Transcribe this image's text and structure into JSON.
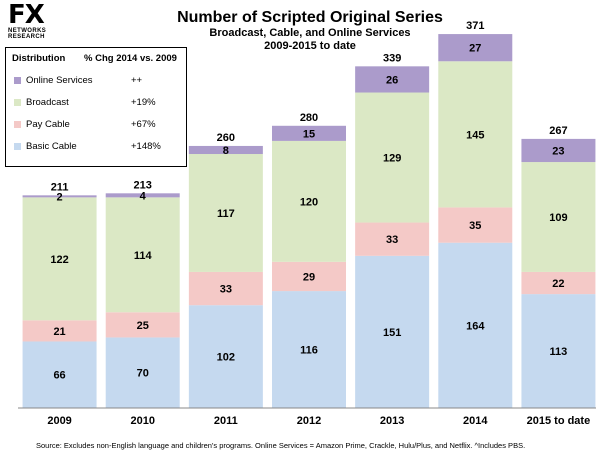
{
  "logo": {
    "mark": "FX",
    "sub_line1": "NETWORKS",
    "sub_line2": "RESEARCH"
  },
  "chart_data": {
    "type": "bar",
    "stacked": true,
    "title": "Number of Scripted Original Series",
    "subtitle_line1": "Broadcast, Cable, and Online Services",
    "subtitle_line2": "2009-2015 to date",
    "categories": [
      "2009",
      "2010",
      "2011",
      "2012",
      "2013",
      "2014",
      "2015 to date"
    ],
    "series": [
      {
        "name": "Basic Cable",
        "color": "#c5d9ef",
        "values": [
          66,
          70,
          102,
          116,
          151,
          164,
          113
        ]
      },
      {
        "name": "Pay Cable",
        "color": "#f4c9c7",
        "values": [
          21,
          25,
          33,
          29,
          33,
          35,
          22
        ]
      },
      {
        "name": "Broadcast",
        "color": "#dbe8c5",
        "values": [
          122,
          114,
          117,
          120,
          129,
          145,
          109
        ]
      },
      {
        "name": "Online Services",
        "color": "#ab9bcb",
        "values": [
          2,
          4,
          8,
          15,
          26,
          27,
          23
        ]
      }
    ],
    "totals": [
      211,
      213,
      260,
      280,
      339,
      371,
      267
    ],
    "ylim": [
      0,
      380
    ],
    "grid": false,
    "legend_position": "top-left"
  },
  "legend": {
    "header_distribution": "Distribution",
    "header_change": "% Chg 2014 vs. 2009",
    "items": [
      {
        "name": "Online Services",
        "pct": "++",
        "color": "#ab9bcb"
      },
      {
        "name": "Broadcast",
        "pct": "+19%",
        "color": "#dbe8c5"
      },
      {
        "name": "Pay Cable",
        "pct": "+67%",
        "color": "#f4c9c7"
      },
      {
        "name": "Basic Cable",
        "pct": "+148%",
        "color": "#c5d9ef"
      }
    ]
  },
  "footnote": "Source:  Excludes non-English language and children's programs.  Online Services = Amazon Prime, Crackle, Hulu/Plus, and Netflix. ^Includes PBS."
}
